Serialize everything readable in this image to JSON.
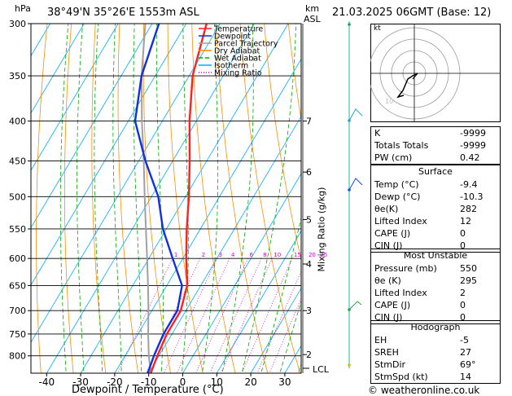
{
  "header": {
    "left_unit": "hPa",
    "location": "38°49'N  35°26'E  1553m  ASL",
    "km_label": "km",
    "asl_label": "ASL",
    "datetime": "21.03.2025  06GMT  (Base: 12)"
  },
  "footer": {
    "copyright": "© weatheronline.co.uk"
  },
  "colors": {
    "temperature": "#ff2020",
    "dewpoint": "#1030e0",
    "parcel": "#a0a0a0",
    "dry_adiabat": "#ff8c00",
    "wet_adiabat": "#00aa00",
    "isotherm": "#00aaff",
    "mixing_ratio": "#d000d0"
  },
  "chart_data": {
    "type": "skew-t",
    "xlabel": "Dewpoint / Temperature (°C)",
    "ylabel_left": "hPa",
    "ylabel_right": "Mixing Ratio (g/kg)",
    "pressure_ticks": [
      "300",
      "350",
      "400",
      "450",
      "500",
      "550",
      "600",
      "650",
      "700",
      "750",
      "800"
    ],
    "temp_ticks": [
      "-40",
      "-30",
      "-20",
      "-10",
      "0",
      "10",
      "20",
      "30"
    ],
    "km_ticks": [
      {
        "km": "7",
        "p": 400
      },
      {
        "km": "6",
        "p": 465
      },
      {
        "km": "5",
        "p": 535
      },
      {
        "km": "4",
        "p": 610
      },
      {
        "km": "3",
        "p": 700
      },
      {
        "km": "2",
        "p": 797
      }
    ],
    "lcl_label": "LCL",
    "mixing_ratio_labels": [
      "1",
      "2",
      "3",
      "4",
      "6",
      "8",
      "10",
      "15",
      "20",
      "25"
    ],
    "legend": [
      "Temperature",
      "Dewpoint",
      "Parcel Trajectory",
      "Dry Adiabat",
      "Wet Adiabat",
      "Isotherm",
      "Mixing Ratio"
    ],
    "temperature_profile": [
      {
        "p": 842,
        "t": -9.4
      },
      {
        "p": 800,
        "t": -10.5
      },
      {
        "p": 750,
        "t": -11.5
      },
      {
        "p": 700,
        "t": -11.5
      },
      {
        "p": 650,
        "t": -14
      },
      {
        "p": 600,
        "t": -19
      },
      {
        "p": 550,
        "t": -24
      },
      {
        "p": 500,
        "t": -29
      },
      {
        "p": 450,
        "t": -35
      },
      {
        "p": 400,
        "t": -42
      },
      {
        "p": 350,
        "t": -49
      },
      {
        "p": 300,
        "t": -54
      }
    ],
    "dewpoint_profile": [
      {
        "p": 842,
        "t": -10.3
      },
      {
        "p": 800,
        "t": -11.5
      },
      {
        "p": 750,
        "t": -12.5
      },
      {
        "p": 700,
        "t": -12.5
      },
      {
        "p": 650,
        "t": -15.5
      },
      {
        "p": 600,
        "t": -23
      },
      {
        "p": 550,
        "t": -31
      },
      {
        "p": 500,
        "t": -38
      },
      {
        "p": 450,
        "t": -48
      },
      {
        "p": 400,
        "t": -58
      },
      {
        "p": 350,
        "t": -64
      },
      {
        "p": 300,
        "t": -68
      }
    ],
    "parcel_profile": [
      {
        "p": 842,
        "t": -9.4
      },
      {
        "p": 800,
        "t": -13
      },
      {
        "p": 750,
        "t": -17
      },
      {
        "p": 700,
        "t": -21
      },
      {
        "p": 650,
        "t": -25.5
      },
      {
        "p": 600,
        "t": -30.5
      },
      {
        "p": 550,
        "t": -36
      },
      {
        "p": 500,
        "t": -42
      },
      {
        "p": 450,
        "t": -48.5
      },
      {
        "p": 400,
        "t": -56
      },
      {
        "p": 350,
        "t": -64
      },
      {
        "p": 300,
        "t": -72
      }
    ],
    "hodograph_label": "kt"
  },
  "table": {
    "top": [
      {
        "k": "K",
        "v": "-9999"
      },
      {
        "k": "Totals Totals",
        "v": "-9999"
      },
      {
        "k": "PW (cm)",
        "v": "0.42"
      }
    ],
    "surface": {
      "title": "Surface",
      "rows": [
        {
          "k": "Temp (°C)",
          "v": "-9.4"
        },
        {
          "k": "Dewp (°C)",
          "v": "-10.3"
        },
        {
          "k": "θe(K)",
          "v": "282"
        },
        {
          "k": "Lifted Index",
          "v": "12"
        },
        {
          "k": "CAPE (J)",
          "v": "0"
        },
        {
          "k": "CIN (J)",
          "v": "0"
        }
      ]
    },
    "unstable": {
      "title": "Most Unstable",
      "rows": [
        {
          "k": "Pressure (mb)",
          "v": "550"
        },
        {
          "k": "θe (K)",
          "v": "295"
        },
        {
          "k": "Lifted Index",
          "v": "2"
        },
        {
          "k": "CAPE (J)",
          "v": "0"
        },
        {
          "k": "CIN (J)",
          "v": "0"
        }
      ]
    },
    "hodograph": {
      "title": "Hodograph",
      "rows": [
        {
          "k": "EH",
          "v": "-5"
        },
        {
          "k": "SREH",
          "v": "27"
        },
        {
          "k": "StmDir",
          "v": "69°"
        },
        {
          "k": "StmSpd (kt)",
          "v": "14"
        }
      ]
    }
  }
}
